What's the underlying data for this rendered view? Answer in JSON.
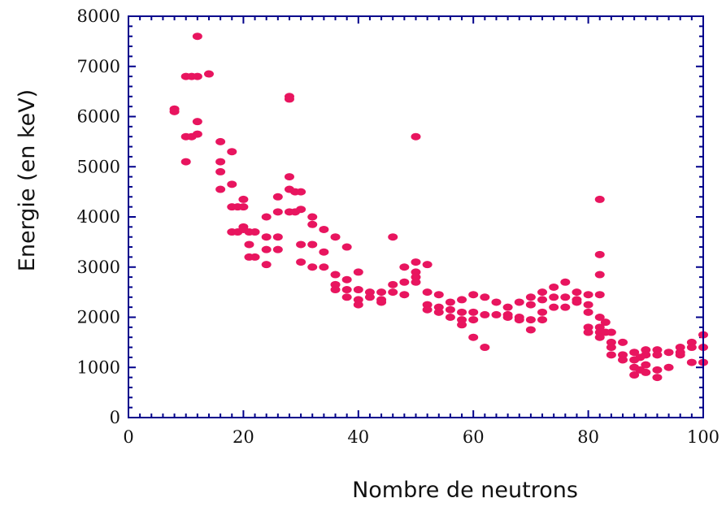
{
  "chart_data": {
    "type": "scatter",
    "title": "",
    "xlabel": "Nombre de neutrons",
    "ylabel": "Energie (en keV)",
    "xlim": [
      0,
      100
    ],
    "ylim": [
      0,
      8000
    ],
    "x_ticks": [
      0,
      20,
      40,
      60,
      80,
      100
    ],
    "y_ticks": [
      0,
      1000,
      2000,
      3000,
      4000,
      5000,
      6000,
      7000,
      8000
    ],
    "x_tick_labels": [
      "0",
      "20",
      "40",
      "60",
      "80",
      "100"
    ],
    "y_tick_labels": [
      "0",
      "1000",
      "2000",
      "3000",
      "4000",
      "5000",
      "6000",
      "7000",
      "8000"
    ],
    "grid": false,
    "legend": "none",
    "marker_color": "#e8155f",
    "axis_color": "#00008b",
    "series": [
      {
        "points": [
          [
            8,
            6150
          ],
          [
            8,
            6100
          ],
          [
            10,
            6800
          ],
          [
            10,
            5600
          ],
          [
            10,
            5100
          ],
          [
            11,
            6800
          ],
          [
            11,
            5600
          ],
          [
            12,
            7600
          ],
          [
            12,
            6800
          ],
          [
            12,
            5900
          ],
          [
            12,
            5650
          ],
          [
            14,
            6850
          ],
          [
            16,
            5500
          ],
          [
            16,
            5100
          ],
          [
            16,
            4900
          ],
          [
            16,
            4550
          ],
          [
            18,
            5300
          ],
          [
            18,
            4650
          ],
          [
            18,
            4200
          ],
          [
            18,
            3700
          ],
          [
            19,
            4200
          ],
          [
            19,
            3700
          ],
          [
            20,
            4350
          ],
          [
            20,
            4200
          ],
          [
            20,
            3800
          ],
          [
            20,
            3750
          ],
          [
            21,
            3700
          ],
          [
            21,
            3450
          ],
          [
            21,
            3200
          ],
          [
            22,
            3700
          ],
          [
            22,
            3200
          ],
          [
            24,
            4000
          ],
          [
            24,
            3600
          ],
          [
            24,
            3350
          ],
          [
            24,
            3050
          ],
          [
            26,
            4400
          ],
          [
            26,
            4100
          ],
          [
            26,
            3600
          ],
          [
            26,
            3350
          ],
          [
            28,
            6400
          ],
          [
            28,
            6350
          ],
          [
            28,
            4800
          ],
          [
            28,
            4550
          ],
          [
            28,
            4100
          ],
          [
            29,
            4500
          ],
          [
            29,
            4100
          ],
          [
            30,
            4500
          ],
          [
            30,
            4150
          ],
          [
            30,
            3450
          ],
          [
            30,
            3100
          ],
          [
            32,
            4000
          ],
          [
            32,
            3850
          ],
          [
            32,
            3450
          ],
          [
            32,
            3000
          ],
          [
            34,
            3750
          ],
          [
            34,
            3300
          ],
          [
            34,
            3000
          ],
          [
            36,
            3600
          ],
          [
            36,
            2850
          ],
          [
            36,
            2650
          ],
          [
            36,
            2550
          ],
          [
            38,
            3400
          ],
          [
            38,
            2750
          ],
          [
            38,
            2550
          ],
          [
            38,
            2400
          ],
          [
            40,
            2900
          ],
          [
            40,
            2550
          ],
          [
            40,
            2350
          ],
          [
            40,
            2250
          ],
          [
            42,
            2500
          ],
          [
            42,
            2400
          ],
          [
            44,
            2500
          ],
          [
            44,
            2350
          ],
          [
            44,
            2300
          ],
          [
            46,
            3600
          ],
          [
            46,
            2650
          ],
          [
            46,
            2500
          ],
          [
            48,
            3000
          ],
          [
            48,
            2700
          ],
          [
            48,
            2450
          ],
          [
            50,
            5600
          ],
          [
            50,
            3100
          ],
          [
            50,
            2900
          ],
          [
            50,
            2800
          ],
          [
            50,
            2700
          ],
          [
            52,
            3050
          ],
          [
            52,
            2500
          ],
          [
            52,
            2250
          ],
          [
            52,
            2150
          ],
          [
            54,
            2450
          ],
          [
            54,
            2200
          ],
          [
            54,
            2100
          ],
          [
            56,
            2300
          ],
          [
            56,
            2150
          ],
          [
            56,
            2000
          ],
          [
            58,
            2350
          ],
          [
            58,
            2100
          ],
          [
            58,
            1950
          ],
          [
            58,
            1850
          ],
          [
            60,
            2450
          ],
          [
            60,
            2100
          ],
          [
            60,
            1950
          ],
          [
            60,
            1600
          ],
          [
            62,
            2400
          ],
          [
            62,
            2050
          ],
          [
            62,
            1400
          ],
          [
            64,
            2300
          ],
          [
            64,
            2050
          ],
          [
            66,
            2200
          ],
          [
            66,
            2050
          ],
          [
            66,
            2000
          ],
          [
            68,
            2300
          ],
          [
            68,
            2000
          ],
          [
            68,
            1950
          ],
          [
            70,
            2400
          ],
          [
            70,
            2250
          ],
          [
            70,
            1950
          ],
          [
            70,
            1750
          ],
          [
            72,
            2500
          ],
          [
            72,
            2350
          ],
          [
            72,
            2100
          ],
          [
            72,
            1950
          ],
          [
            74,
            2600
          ],
          [
            74,
            2400
          ],
          [
            74,
            2200
          ],
          [
            76,
            2700
          ],
          [
            76,
            2400
          ],
          [
            76,
            2200
          ],
          [
            78,
            2500
          ],
          [
            78,
            2350
          ],
          [
            78,
            2300
          ],
          [
            80,
            2450
          ],
          [
            80,
            2250
          ],
          [
            80,
            2100
          ],
          [
            80,
            1800
          ],
          [
            80,
            1700
          ],
          [
            82,
            4350
          ],
          [
            82,
            3250
          ],
          [
            82,
            2850
          ],
          [
            82,
            2450
          ],
          [
            82,
            2000
          ],
          [
            82,
            1800
          ],
          [
            82,
            1700
          ],
          [
            82,
            1600
          ],
          [
            83,
            1900
          ],
          [
            83,
            1700
          ],
          [
            84,
            1700
          ],
          [
            84,
            1500
          ],
          [
            84,
            1400
          ],
          [
            84,
            1250
          ],
          [
            86,
            1500
          ],
          [
            86,
            1250
          ],
          [
            86,
            1150
          ],
          [
            88,
            1300
          ],
          [
            88,
            1150
          ],
          [
            88,
            1000
          ],
          [
            88,
            850
          ],
          [
            89,
            1200
          ],
          [
            89,
            950
          ],
          [
            90,
            1350
          ],
          [
            90,
            1250
          ],
          [
            90,
            1050
          ],
          [
            90,
            900
          ],
          [
            92,
            1350
          ],
          [
            92,
            1250
          ],
          [
            92,
            950
          ],
          [
            92,
            800
          ],
          [
            94,
            1300
          ],
          [
            94,
            1000
          ],
          [
            96,
            1400
          ],
          [
            96,
            1300
          ],
          [
            96,
            1250
          ],
          [
            98,
            1500
          ],
          [
            98,
            1400
          ],
          [
            98,
            1100
          ],
          [
            100,
            1650
          ],
          [
            100,
            1400
          ],
          [
            100,
            1100
          ]
        ]
      }
    ]
  }
}
